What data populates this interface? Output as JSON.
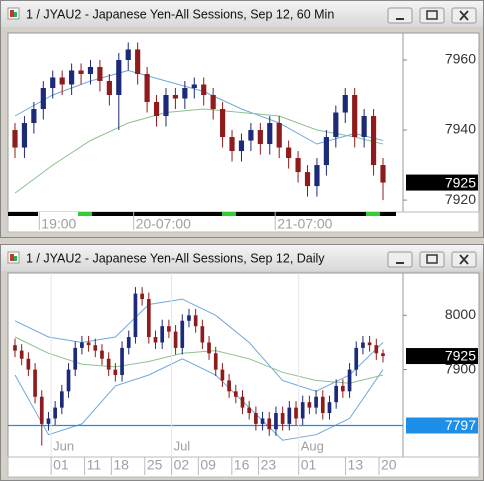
{
  "chart_data": [
    {
      "type": "candlestick",
      "title": "1 / JYAU2 - Japanese Yen-All Sessions, Sep 12, 60 Min",
      "ylim": [
        7916.6,
        7967.7
      ],
      "yticks": [
        7920,
        7940,
        7960
      ],
      "categories": [
        null,
        null,
        null,
        "19:00",
        null,
        null,
        null,
        null,
        null,
        null,
        null,
        null,
        null,
        "20-07:00",
        null,
        null,
        null,
        null,
        null,
        null,
        null,
        null,
        null,
        null,
        null,
        null,
        null,
        null,
        "21-07:00",
        null,
        null,
        null,
        null,
        null,
        null,
        null,
        null,
        null,
        null,
        null
      ],
      "open": [
        7940,
        7935,
        7942,
        7946,
        7952,
        7955,
        7953,
        7957,
        7956,
        7958,
        7954,
        7950,
        7960,
        7963,
        7956,
        7948,
        7944,
        7950,
        7949,
        7952,
        7953,
        7950,
        7946,
        7938,
        7934,
        7937,
        7940,
        7936,
        7942,
        7935,
        7932,
        7928,
        7924,
        7930,
        7938,
        7945,
        7950,
        7938,
        7944,
        7930
      ],
      "high": [
        7942,
        7944,
        7948,
        7954,
        7957,
        7957,
        7959,
        7959,
        7960,
        7960,
        7956,
        7962,
        7965,
        7965,
        7958,
        7950,
        7952,
        7952,
        7954,
        7955,
        7955,
        7952,
        7948,
        7940,
        7939,
        7942,
        7942,
        7944,
        7944,
        7937,
        7934,
        7930,
        7932,
        7940,
        7947,
        7952,
        7952,
        7946,
        7946,
        7932
      ],
      "low": [
        7932,
        7932,
        7939,
        7943,
        7949,
        7950,
        7950,
        7953,
        7953,
        7951,
        7947,
        7940,
        7957,
        7953,
        7945,
        7941,
        7941,
        7946,
        7946,
        7949,
        7947,
        7943,
        7935,
        7931,
        7931,
        7934,
        7933,
        7933,
        7932,
        7929,
        7925,
        7921,
        7921,
        7927,
        7935,
        7942,
        7935,
        7935,
        7927,
        7920
      ],
      "close": [
        7935,
        7942,
        7946,
        7952,
        7955,
        7953,
        7957,
        7956,
        7958,
        7954,
        7950,
        7960,
        7963,
        7956,
        7948,
        7944,
        7950,
        7949,
        7952,
        7953,
        7950,
        7946,
        7938,
        7934,
        7937,
        7940,
        7936,
        7942,
        7935,
        7932,
        7928,
        7924,
        7930,
        7938,
        7945,
        7950,
        7938,
        7944,
        7930,
        7925
      ],
      "up_color": "#1c2a78",
      "down_color": "#8e1c1c",
      "overlays": [
        {
          "color": "#6fa8dc",
          "x": [
            0,
            4,
            8,
            12,
            16,
            20,
            24,
            28,
            32,
            36,
            39
          ],
          "values": [
            7944,
            7950,
            7954,
            7957,
            7954,
            7951,
            7946,
            7942,
            7936,
            7939,
            7937
          ]
        },
        {
          "color": "#8fc08f",
          "x": [
            0,
            4,
            8,
            12,
            16,
            20,
            24,
            28,
            32,
            36,
            39
          ],
          "values": [
            7922,
            7930,
            7937,
            7942,
            7945,
            7946,
            7945,
            7944,
            7940,
            7938,
            7936
          ]
        }
      ],
      "last_price": 7925
    },
    {
      "type": "candlestick",
      "title": "1 / JYAU2 - Japanese Yen-All Sessions, Sep 12, Daily",
      "ylim": [
        7739,
        8078
      ],
      "yticks": [
        7900,
        8000
      ],
      "categories": [
        null,
        null,
        null,
        null,
        null,
        null,
        "01",
        null,
        null,
        null,
        null,
        "11",
        null,
        null,
        null,
        "18",
        null,
        null,
        null,
        null,
        "25",
        null,
        null,
        null,
        "02",
        null,
        null,
        null,
        "09",
        null,
        null,
        null,
        null,
        "16",
        null,
        null,
        null,
        "23",
        null,
        null,
        null,
        null,
        null,
        "01",
        null,
        null,
        null,
        null,
        null,
        null,
        "13",
        null,
        null,
        null,
        null,
        "20"
      ],
      "months": [
        null,
        null,
        null,
        null,
        null,
        null,
        "Jun",
        null,
        null,
        null,
        null,
        null,
        null,
        null,
        null,
        null,
        null,
        null,
        null,
        null,
        null,
        null,
        null,
        null,
        "Jul",
        null,
        null,
        null,
        null,
        null,
        null,
        null,
        null,
        null,
        null,
        null,
        null,
        null,
        null,
        null,
        null,
        null,
        null,
        "Aug",
        null,
        null,
        null,
        null,
        null,
        null,
        null,
        null,
        null,
        null,
        null,
        null
      ],
      "open": [
        7945,
        7935,
        7920,
        7900,
        7850,
        7800,
        7810,
        7830,
        7860,
        7900,
        7940,
        7950,
        7945,
        7935,
        7920,
        7900,
        7890,
        7940,
        7960,
        8040,
        8030,
        7960,
        7950,
        7980,
        7970,
        7940,
        7990,
        8000,
        7980,
        7950,
        7930,
        7900,
        7880,
        7860,
        7850,
        7830,
        7820,
        7800,
        7810,
        7790,
        7820,
        7800,
        7830,
        7810,
        7840,
        7830,
        7850,
        7820,
        7840,
        7870,
        7860,
        7900,
        7940,
        7950,
        7945,
        7930
      ],
      "high": [
        7957,
        7947,
        7932,
        7912,
        7862,
        7822,
        7842,
        7872,
        7912,
        7952,
        7962,
        7962,
        7957,
        7947,
        7932,
        7912,
        7952,
        7972,
        8052,
        8052,
        8042,
        7972,
        7992,
        7992,
        7982,
        8002,
        8012,
        8012,
        7992,
        7962,
        7942,
        7912,
        7892,
        7872,
        7862,
        7842,
        7832,
        7822,
        7822,
        7832,
        7832,
        7842,
        7842,
        7852,
        7852,
        7862,
        7862,
        7852,
        7882,
        7882,
        7912,
        7952,
        7962,
        7962,
        7957,
        7937
      ],
      "low": [
        7923,
        7908,
        7888,
        7838,
        7760,
        7788,
        7798,
        7818,
        7848,
        7888,
        7928,
        7933,
        7923,
        7908,
        7888,
        7878,
        7878,
        7928,
        7948,
        8018,
        7948,
        7938,
        7938,
        7958,
        7928,
        7928,
        7978,
        7968,
        7938,
        7918,
        7888,
        7868,
        7848,
        7838,
        7818,
        7808,
        7788,
        7788,
        7778,
        7778,
        7788,
        7788,
        7798,
        7798,
        7818,
        7818,
        7808,
        7808,
        7828,
        7848,
        7848,
        7888,
        7928,
        7933,
        7918,
        7913
      ],
      "close": [
        7935,
        7920,
        7900,
        7850,
        7800,
        7810,
        7830,
        7860,
        7900,
        7940,
        7950,
        7945,
        7935,
        7920,
        7900,
        7890,
        7940,
        7960,
        8040,
        8030,
        7960,
        7950,
        7980,
        7970,
        7940,
        7990,
        8000,
        7980,
        7950,
        7930,
        7900,
        7880,
        7860,
        7850,
        7830,
        7820,
        7800,
        7810,
        7790,
        7820,
        7800,
        7830,
        7810,
        7840,
        7830,
        7850,
        7820,
        7840,
        7870,
        7860,
        7900,
        7940,
        7950,
        7945,
        7930,
        7925
      ],
      "up_color": "#1c2a78",
      "down_color": "#8e1c1c",
      "overlays": [
        {
          "color": "#6fa8dc",
          "x": [
            0,
            5,
            10,
            15,
            20,
            25,
            30,
            35,
            40,
            45,
            50,
            55
          ],
          "values": [
            7990,
            7960,
            7950,
            7960,
            8020,
            8030,
            8000,
            7950,
            7880,
            7860,
            7890,
            7950
          ]
        },
        {
          "color": "#6fa8dc",
          "x": [
            0,
            5,
            10,
            15,
            20,
            25,
            30,
            35,
            40,
            45,
            50,
            55
          ],
          "values": [
            7890,
            7780,
            7800,
            7870,
            7890,
            7920,
            7890,
            7830,
            7770,
            7780,
            7810,
            7900
          ]
        },
        {
          "color": "#8fc08f",
          "x": [
            0,
            5,
            10,
            15,
            20,
            25,
            30,
            35,
            40,
            45,
            50,
            55
          ],
          "values": [
            7960,
            7930,
            7910,
            7905,
            7915,
            7930,
            7935,
            7920,
            7895,
            7880,
            7875,
            7890
          ]
        }
      ],
      "last_price": 7925,
      "hline": 7797,
      "hline_color": "#1e8fe8"
    }
  ]
}
